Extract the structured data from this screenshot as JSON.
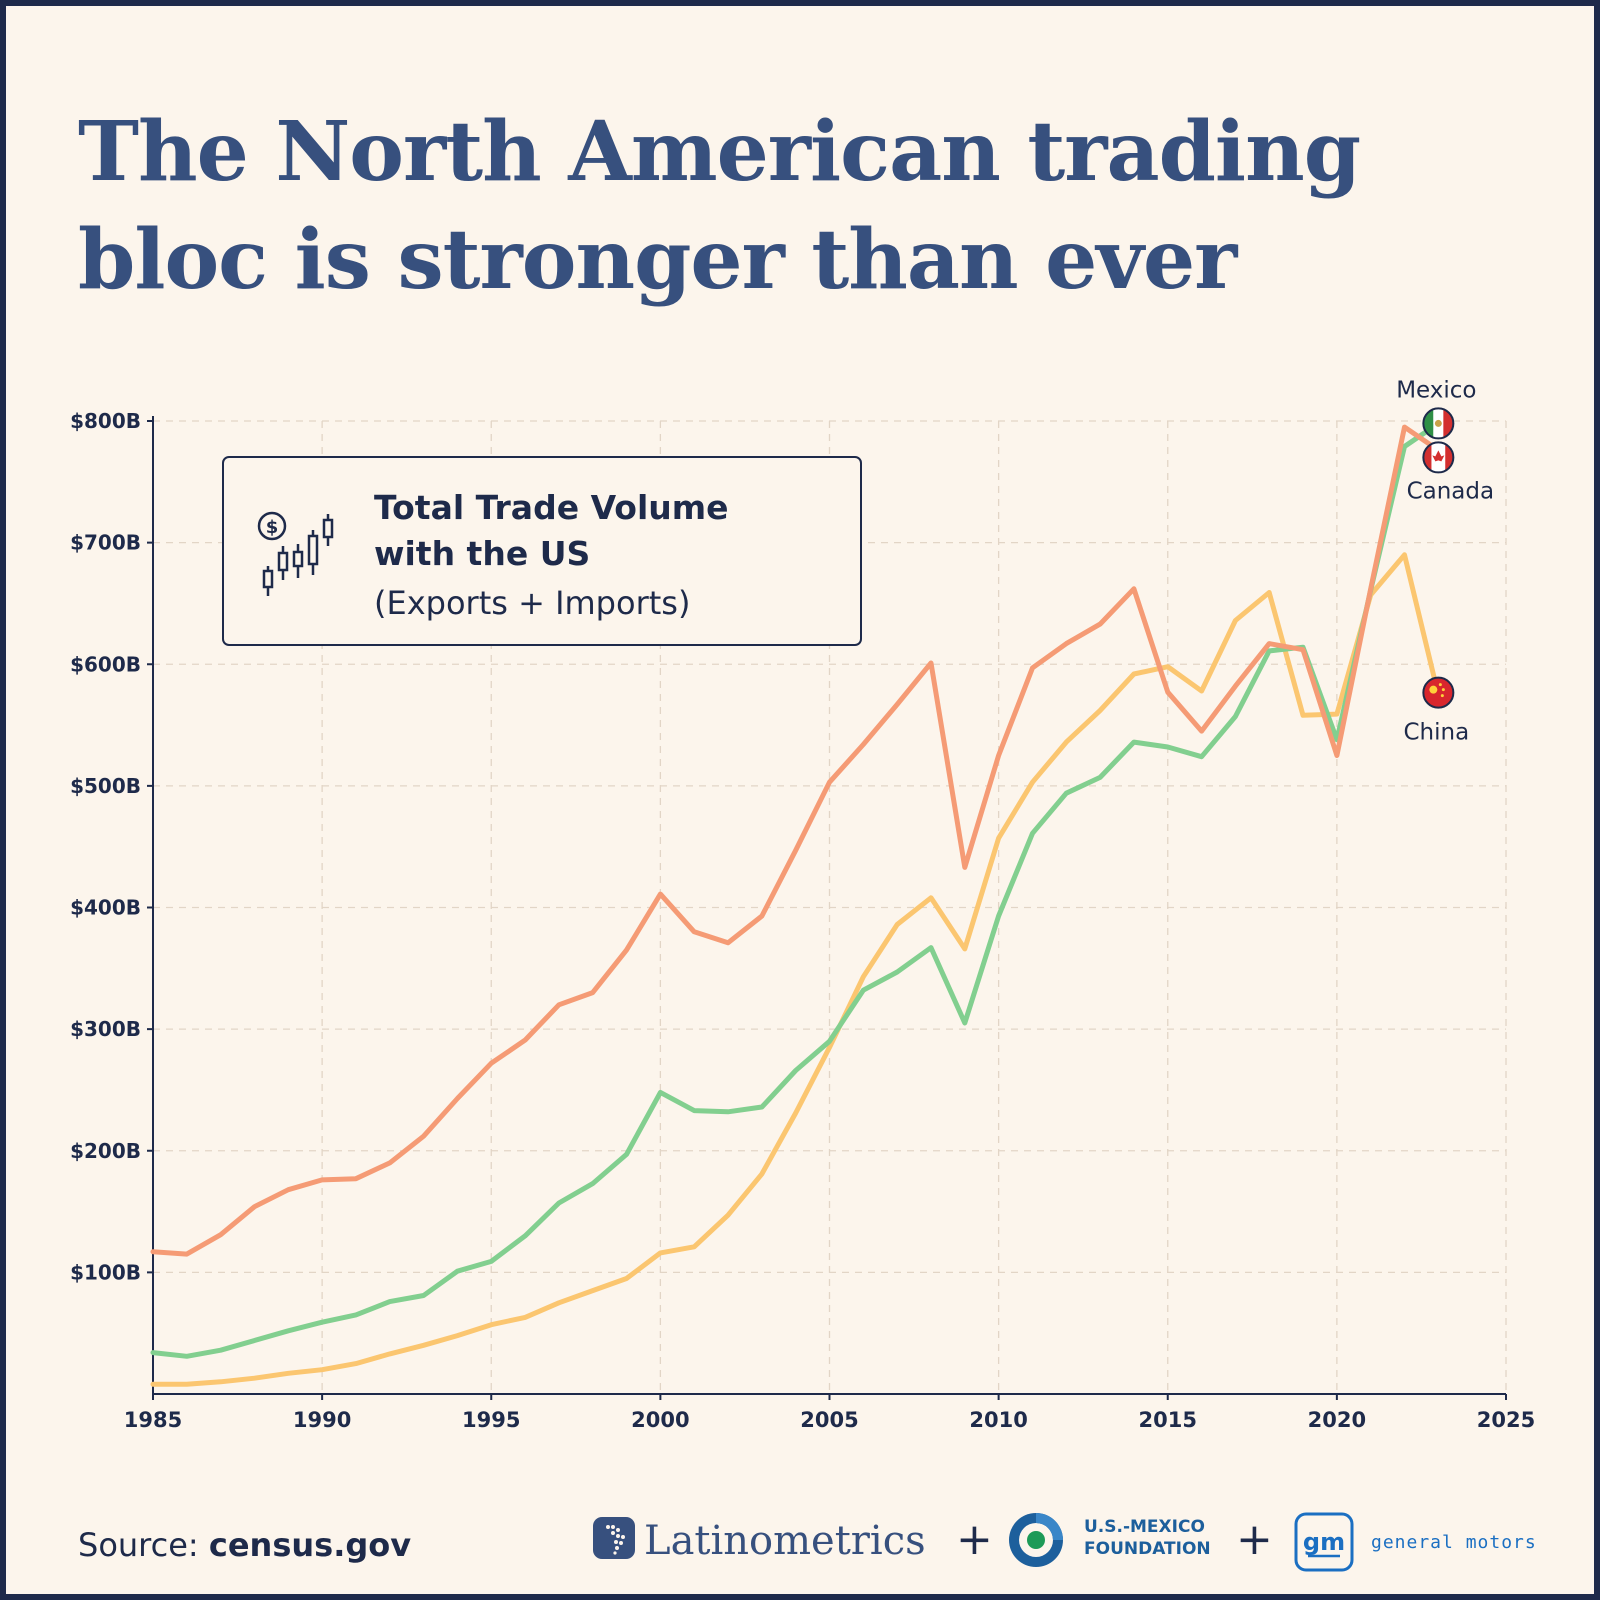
{
  "title": "The North American trading bloc is stronger than ever",
  "legend": {
    "line1": "Total Trade Volume",
    "line2": "with the US",
    "sub": "(Exports + Imports)"
  },
  "source": {
    "label": "Source:",
    "value": "census.gov"
  },
  "logos": {
    "latinometrics": "Latinometrics",
    "usmf_line1": "U.S.-MEXICO",
    "usmf_line2": "FOUNDATION",
    "gm_mark": "gm",
    "gm_name": "general motors",
    "plus": "+"
  },
  "chart_data": {
    "type": "line",
    "title": "Total Trade Volume with the US (Exports + Imports)",
    "xlabel": "",
    "ylabel": "",
    "xlim": [
      1985,
      2025
    ],
    "ylim": [
      0,
      800
    ],
    "unit": "billions USD",
    "x_ticks": [
      1985,
      1990,
      1995,
      2000,
      2005,
      2010,
      2015,
      2020,
      2025
    ],
    "y_ticks": [
      {
        "value": 100,
        "label": "$100B"
      },
      {
        "value": 200,
        "label": "$200B"
      },
      {
        "value": 300,
        "label": "$300B"
      },
      {
        "value": 400,
        "label": "$400B"
      },
      {
        "value": 500,
        "label": "$500B"
      },
      {
        "value": 600,
        "label": "$600B"
      },
      {
        "value": 700,
        "label": "$700B"
      },
      {
        "value": 800,
        "label": "$800B"
      }
    ],
    "grid": true,
    "x": [
      1985,
      1986,
      1987,
      1988,
      1989,
      1990,
      1991,
      1992,
      1993,
      1994,
      1995,
      1996,
      1997,
      1998,
      1999,
      2000,
      2001,
      2002,
      2003,
      2004,
      2005,
      2006,
      2007,
      2008,
      2009,
      2010,
      2011,
      2012,
      2013,
      2014,
      2015,
      2016,
      2017,
      2018,
      2019,
      2020,
      2021,
      2022,
      2023
    ],
    "series": [
      {
        "name": "Canada",
        "color": "#f59b75",
        "label_flag": "canada-flag-icon",
        "values": [
          117,
          115,
          131,
          154,
          168,
          176,
          177,
          190,
          212,
          243,
          272,
          291,
          320,
          330,
          365,
          411,
          380,
          371,
          393,
          447,
          503,
          534,
          567,
          601,
          433,
          525,
          597,
          617,
          633,
          662,
          577,
          545,
          582,
          617,
          612,
          525,
          662,
          795,
          776
        ]
      },
      {
        "name": "Mexico",
        "color": "#82cf8f",
        "label_flag": "mexico-flag-icon",
        "values": [
          34,
          31,
          36,
          44,
          52,
          59,
          65,
          76,
          81,
          101,
          109,
          130,
          157,
          173,
          197,
          248,
          233,
          232,
          236,
          266,
          290,
          332,
          347,
          367,
          305,
          393,
          461,
          494,
          507,
          536,
          532,
          524,
          557,
          611,
          614,
          538,
          661,
          779,
          798
        ]
      },
      {
        "name": "China",
        "color": "#fbc670",
        "label_flag": "china-flag-icon",
        "values": [
          8,
          8,
          10,
          13,
          17,
          20,
          25,
          33,
          40,
          48,
          57,
          63,
          75,
          85,
          95,
          116,
          121,
          147,
          181,
          231,
          285,
          343,
          386,
          408,
          366,
          457,
          503,
          536,
          562,
          592,
          598,
          578,
          636,
          659,
          558,
          559,
          657,
          690,
          575
        ]
      }
    ]
  }
}
